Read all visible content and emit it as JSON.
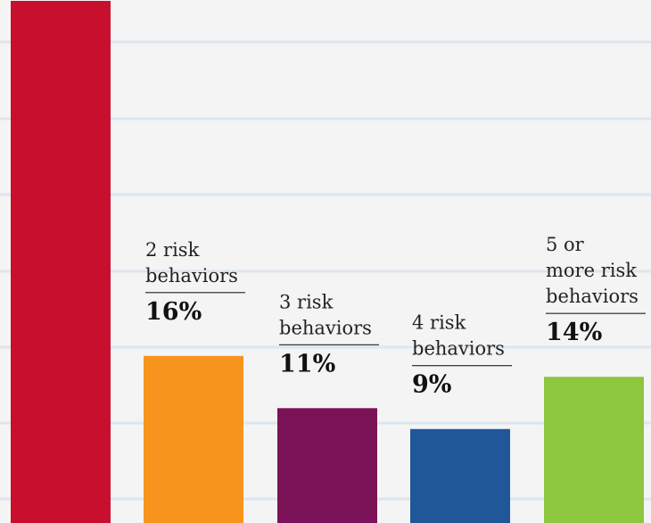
{
  "chart_data": {
    "type": "bar",
    "categories": [
      "",
      "2 risk behaviors",
      "3 risk behaviors",
      "4 risk behaviors",
      "5 or more risk behaviors"
    ],
    "category_lines": [
      [],
      [
        "2 risk",
        "behaviors"
      ],
      [
        "3 risk",
        "behaviors"
      ],
      [
        "4 risk",
        "behaviors"
      ],
      [
        "5 or",
        "more risk",
        "behaviors"
      ]
    ],
    "values": [
      50,
      16,
      11,
      9,
      14
    ],
    "value_labels": [
      "",
      "16%",
      "11%",
      "9%",
      "14%"
    ],
    "colors": [
      "#c8102e",
      "#f7941d",
      "#7b1359",
      "#1f5799",
      "#8dc63f"
    ],
    "title": "",
    "xlabel": "",
    "ylabel": "",
    "grid": true,
    "legend": "none"
  }
}
